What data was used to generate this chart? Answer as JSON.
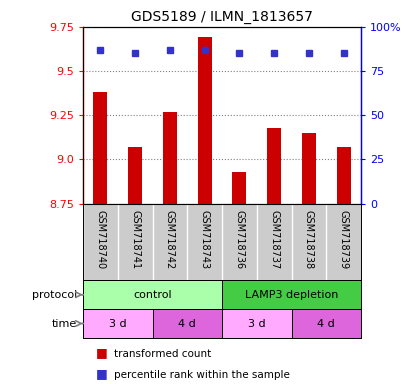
{
  "title": "GDS5189 / ILMN_1813657",
  "samples": [
    "GSM718740",
    "GSM718741",
    "GSM718742",
    "GSM718743",
    "GSM718736",
    "GSM718737",
    "GSM718738",
    "GSM718739"
  ],
  "transformed_counts": [
    9.38,
    9.07,
    9.27,
    9.69,
    8.93,
    9.18,
    9.15,
    9.07
  ],
  "percentile_ranks": [
    87,
    85,
    87,
    87,
    85,
    85,
    85,
    85
  ],
  "ylim": [
    8.75,
    9.75
  ],
  "y_ticks": [
    8.75,
    9.0,
    9.25,
    9.5,
    9.75
  ],
  "right_ylim": [
    0,
    100
  ],
  "right_yticks": [
    0,
    25,
    50,
    75,
    100
  ],
  "right_yticklabels": [
    "0",
    "25",
    "50",
    "75",
    "100%"
  ],
  "bar_color": "#cc0000",
  "dot_color": "#3333cc",
  "protocol_groups": [
    {
      "label": "control",
      "start": 0,
      "end": 4,
      "color": "#aaffaa"
    },
    {
      "label": "LAMP3 depletion",
      "start": 4,
      "end": 8,
      "color": "#44cc44"
    }
  ],
  "time_groups": [
    {
      "label": "3 d",
      "start": 0,
      "end": 2,
      "color": "#ffaaff"
    },
    {
      "label": "4 d",
      "start": 2,
      "end": 4,
      "color": "#dd66dd"
    },
    {
      "label": "3 d",
      "start": 4,
      "end": 6,
      "color": "#ffaaff"
    },
    {
      "label": "4 d",
      "start": 6,
      "end": 8,
      "color": "#dd66dd"
    }
  ],
  "legend_items": [
    {
      "label": "transformed count",
      "color": "#cc0000"
    },
    {
      "label": "percentile rank within the sample",
      "color": "#3333cc"
    }
  ],
  "sample_bg": "#cccccc",
  "fig_width": 4.15,
  "fig_height": 3.84,
  "dpi": 100
}
